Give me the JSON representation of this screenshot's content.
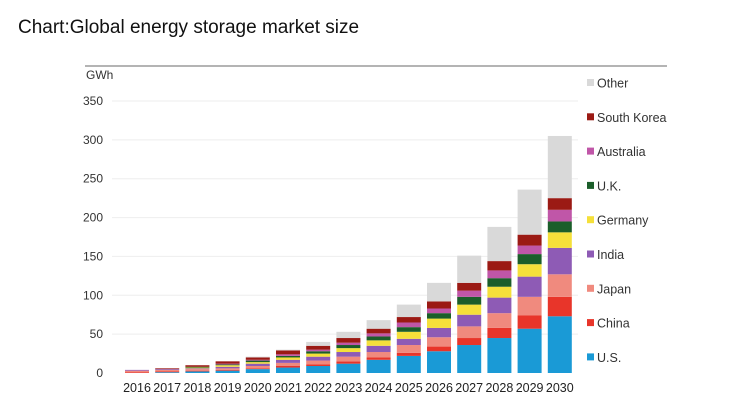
{
  "title": "Chart:Global energy storage market size",
  "chart_data": {
    "type": "bar",
    "stacked": true,
    "ylabel": "GWh",
    "ylim": [
      0,
      350
    ],
    "yticks": [
      0,
      50,
      100,
      150,
      200,
      250,
      300,
      350
    ],
    "grid": true,
    "legend_position": "right",
    "categories": [
      "2016",
      "2017",
      "2018",
      "2019",
      "2020",
      "2021",
      "2022",
      "2023",
      "2024",
      "2025",
      "2026",
      "2027",
      "2028",
      "2029",
      "2030"
    ],
    "series": [
      {
        "name": "U.S.",
        "color": "#1a9ad6",
        "values": [
          0,
          1,
          2,
          3,
          5,
          7,
          9,
          12,
          17,
          22,
          28,
          36,
          45,
          57,
          73
        ]
      },
      {
        "name": "China",
        "color": "#e8352a",
        "values": [
          1,
          1,
          1,
          1,
          1,
          2,
          2,
          3,
          3,
          4,
          6,
          9,
          13,
          17,
          25
        ]
      },
      {
        "name": "Japan",
        "color": "#f08a7e",
        "values": [
          2,
          2,
          2,
          2,
          3,
          4,
          5,
          6,
          7,
          10,
          12,
          15,
          19,
          24,
          29
        ]
      },
      {
        "name": "India",
        "color": "#8e5bb5",
        "values": [
          1,
          1,
          1,
          2,
          3,
          4,
          5,
          6,
          8,
          8,
          12,
          15,
          20,
          26,
          34
        ]
      },
      {
        "name": "Germany",
        "color": "#f5e03a",
        "values": [
          0,
          0,
          1,
          2,
          2,
          3,
          4,
          5,
          7,
          9,
          12,
          13,
          14,
          16,
          20
        ]
      },
      {
        "name": "U.K.",
        "color": "#1b5e2a",
        "values": [
          0,
          0,
          1,
          1,
          2,
          2,
          3,
          4,
          5,
          6,
          7,
          10,
          11,
          13,
          14
        ]
      },
      {
        "name": "Australia",
        "color": "#c056a8",
        "values": [
          0,
          0,
          0,
          1,
          1,
          2,
          2,
          3,
          4,
          6,
          6,
          8,
          10,
          11,
          15
        ]
      },
      {
        "name": "South Korea",
        "color": "#9b1a14",
        "values": [
          0,
          1,
          2,
          3,
          3,
          5,
          5,
          6,
          6,
          7,
          9,
          10,
          12,
          14,
          15
        ]
      },
      {
        "name": "Other",
        "color": "#d9d9d9",
        "values": [
          0,
          0,
          0,
          0,
          1,
          1,
          5,
          8,
          11,
          16,
          24,
          35,
          44,
          58,
          80
        ]
      }
    ]
  }
}
